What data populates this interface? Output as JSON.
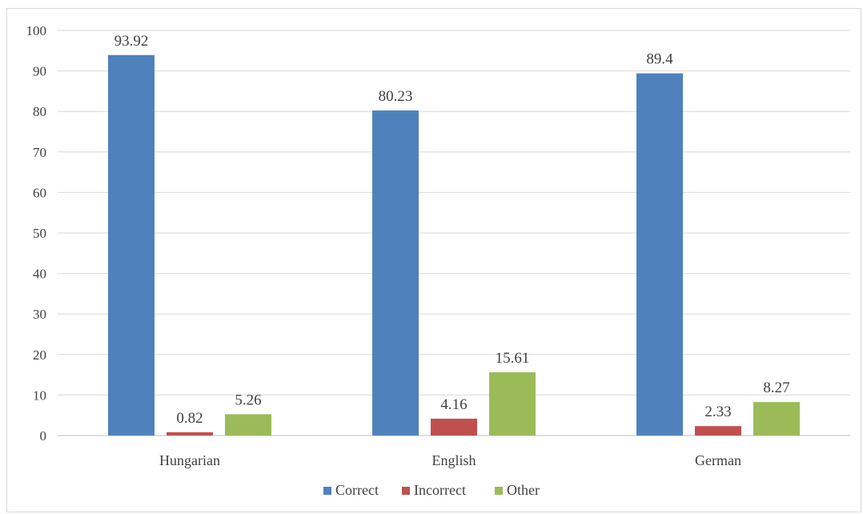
{
  "chart_data": {
    "type": "bar",
    "categories": [
      "Hungarian",
      "English",
      "German"
    ],
    "series": [
      {
        "name": "Correct",
        "color": "#4f81bd",
        "values": [
          93.92,
          80.23,
          89.4
        ]
      },
      {
        "name": "Incorrect",
        "color": "#c0504d",
        "values": [
          0.82,
          4.16,
          2.33
        ]
      },
      {
        "name": "Other",
        "color": "#9bbb59",
        "values": [
          5.26,
          15.61,
          8.27
        ]
      }
    ],
    "y_ticks": [
      "0",
      "10",
      "20",
      "30",
      "40",
      "50",
      "60",
      "70",
      "80",
      "90",
      "100"
    ],
    "ylim": [
      0,
      100
    ],
    "grid": true,
    "legend_position": "bottom"
  }
}
